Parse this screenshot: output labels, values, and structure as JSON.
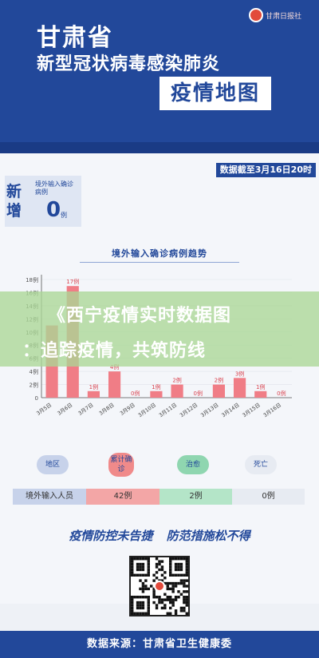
{
  "header": {
    "province": "甘肃省",
    "disease": "新型冠状病毒感染肺炎",
    "map_title": "疫情地图",
    "logo_text": "甘肃日报社"
  },
  "date_tag": "数据截至3月16日20时",
  "new_cases": {
    "title": "新增",
    "label": "境外输入确诊病例",
    "value": "0",
    "unit": "例"
  },
  "chart_data": {
    "type": "bar",
    "title": "境外输入确诊病例趋势",
    "categories": [
      "3月5日",
      "3月6日",
      "3月7日",
      "3月8日",
      "3月9日",
      "3月10日",
      "3月11日",
      "3月12日",
      "3月13日",
      "3月14日",
      "3月15日",
      "3月16日"
    ],
    "values": [
      11,
      17,
      1,
      4,
      0,
      1,
      2,
      0,
      2,
      3,
      1,
      0
    ],
    "data_labels": [
      "",
      "17例",
      "1例",
      "4例",
      "0例",
      "1例",
      "2例",
      "0例",
      "2例",
      "3例",
      "1例",
      "0例"
    ],
    "y_tick_labels": [
      "0",
      "2例",
      "4例",
      "6例",
      "8例",
      "10例",
      "12例",
      "14例",
      "16例",
      "18例"
    ],
    "ylim": [
      0,
      18
    ],
    "bar_color": "#f07d86"
  },
  "overlay": {
    "line1": "《西宁疫情实时数据图",
    "line2": "：追踪疫情，共筑防线"
  },
  "summary": {
    "headers": [
      {
        "label": "地区",
        "color": "#c7d2ea"
      },
      {
        "label": "累计确诊",
        "color": "#f08a8a"
      },
      {
        "label": "治愈",
        "color": "#8fd6b0"
      },
      {
        "label": "死亡",
        "color": "#e7ebf2"
      }
    ],
    "row": [
      {
        "value": "境外输入人员",
        "color": "#c7d2ea"
      },
      {
        "value": "42例",
        "color": "#f3a6a6"
      },
      {
        "value": "2例",
        "color": "#b4e5c8"
      },
      {
        "value": "0例",
        "color": "#e7ebf2"
      }
    ]
  },
  "slogan": {
    "part1": "疫情防控未告捷",
    "part2": "防范措施松不得"
  },
  "footer": "数据来源：甘肃省卫生健康委"
}
